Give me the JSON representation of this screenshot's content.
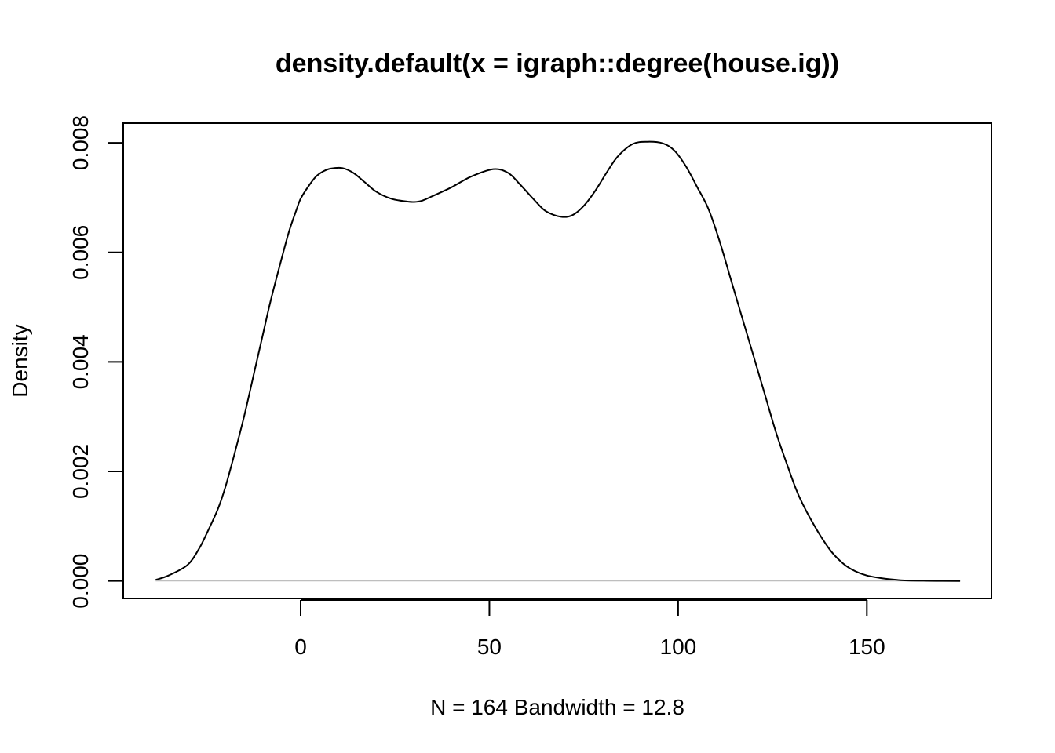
{
  "chart_data": {
    "type": "line",
    "title": "density.default(x = igraph::degree(house.ig))",
    "xlabel": "N = 164   Bandwidth = 12.8",
    "ylabel": "Density",
    "xlim": [
      -47,
      183
    ],
    "ylim": [
      -0.00032,
      0.00836
    ],
    "x_ticks": [
      0,
      50,
      100,
      150
    ],
    "x_tick_labels": [
      "0",
      "50",
      "100",
      "150"
    ],
    "y_ticks": [
      0.0,
      0.002,
      0.004,
      0.006,
      0.008
    ],
    "y_tick_labels": [
      "0.000",
      "0.002",
      "0.004",
      "0.006",
      "0.008"
    ],
    "grid": false,
    "zero_line": {
      "y": 0,
      "color": "#bebebe"
    },
    "series": [
      {
        "color": "#000000",
        "x": [
          -38.4,
          -35,
          -30,
          -27,
          -25,
          -22,
          -20,
          -18,
          -15,
          -12,
          -10,
          -8,
          -5,
          -3,
          -1,
          0,
          2,
          4,
          6,
          8,
          11,
          14,
          17,
          20,
          24,
          28,
          30,
          32,
          35,
          40,
          45,
          51,
          55,
          58,
          62,
          65,
          69,
          72,
          75,
          78,
          81,
          84,
          88,
          92,
          96,
          99,
          102,
          105,
          108,
          111,
          114,
          117,
          120,
          123,
          126,
          129,
          132,
          136,
          140,
          143,
          146,
          150,
          155,
          160,
          165,
          170,
          174.7
        ],
        "y": [
          2e-05,
          0.0001,
          0.00029,
          0.00058,
          0.00085,
          0.0013,
          0.0017,
          0.0022,
          0.003,
          0.0039,
          0.0045,
          0.0051,
          0.0059,
          0.0064,
          0.0068,
          0.00698,
          0.0072,
          0.00738,
          0.00748,
          0.00753,
          0.00754,
          0.00745,
          0.00728,
          0.00711,
          0.00698,
          0.00693,
          0.00692,
          0.00694,
          0.00703,
          0.00719,
          0.00738,
          0.00752,
          0.00745,
          0.00725,
          0.00695,
          0.00675,
          0.00665,
          0.00668,
          0.00685,
          0.00712,
          0.00745,
          0.00775,
          0.00798,
          0.00802,
          0.00799,
          0.00786,
          0.00758,
          0.0072,
          0.0068,
          0.0062,
          0.0055,
          0.0048,
          0.0041,
          0.0034,
          0.0027,
          0.0021,
          0.00155,
          0.00102,
          0.00059,
          0.00036,
          0.00021,
          0.0001,
          4e-05,
          1e-05,
          3e-06,
          1e-06,
          0.0
        ]
      }
    ]
  }
}
